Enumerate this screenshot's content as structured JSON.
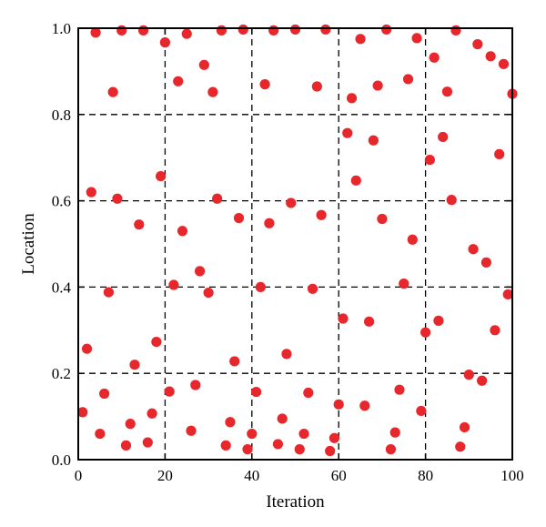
{
  "chart_data": {
    "type": "scatter",
    "xlabel": "Iteration",
    "ylabel": "Location",
    "xlim": [
      0,
      100
    ],
    "ylim": [
      0,
      1
    ],
    "x_ticks": [
      "0",
      "20",
      "40",
      "60",
      "80",
      "100"
    ],
    "y_ticks": [
      "0.0",
      "0.2",
      "0.4",
      "0.6",
      "0.8",
      "1.0"
    ],
    "grid": true,
    "grid_style": "dashed",
    "marker_color": "#e8272d",
    "series": [
      {
        "points": [
          [
            1,
            0.11
          ],
          [
            2,
            0.257
          ],
          [
            3,
            0.62
          ],
          [
            4,
            0.99
          ],
          [
            5,
            0.06
          ],
          [
            6,
            0.153
          ],
          [
            7,
            0.388
          ],
          [
            8,
            0.852
          ],
          [
            9,
            0.605
          ],
          [
            10,
            0.995
          ],
          [
            11,
            0.033
          ],
          [
            12,
            0.083
          ],
          [
            13,
            0.22
          ],
          [
            14,
            0.545
          ],
          [
            15,
            0.995
          ],
          [
            16,
            0.04
          ],
          [
            17,
            0.107
          ],
          [
            18,
            0.273
          ],
          [
            19,
            0.657
          ],
          [
            20,
            0.967
          ],
          [
            21,
            0.158
          ],
          [
            22,
            0.405
          ],
          [
            23,
            0.877
          ],
          [
            24,
            0.53
          ],
          [
            25,
            0.987
          ],
          [
            26,
            0.067
          ],
          [
            27,
            0.173
          ],
          [
            28,
            0.437
          ],
          [
            29,
            0.915
          ],
          [
            30,
            0.387
          ],
          [
            31,
            0.852
          ],
          [
            32,
            0.605
          ],
          [
            33,
            0.995
          ],
          [
            34,
            0.033
          ],
          [
            35,
            0.087
          ],
          [
            36,
            0.228
          ],
          [
            37,
            0.56
          ],
          [
            38,
            0.997
          ],
          [
            39,
            0.024
          ],
          [
            40,
            0.06
          ],
          [
            41,
            0.157
          ],
          [
            42,
            0.4
          ],
          [
            43,
            0.87
          ],
          [
            44,
            0.548
          ],
          [
            45,
            0.995
          ],
          [
            46,
            0.036
          ],
          [
            47,
            0.095
          ],
          [
            48,
            0.245
          ],
          [
            49,
            0.595
          ],
          [
            50,
            0.997
          ],
          [
            51,
            0.024
          ],
          [
            52,
            0.06
          ],
          [
            53,
            0.155
          ],
          [
            54,
            0.396
          ],
          [
            55,
            0.865
          ],
          [
            56,
            0.567
          ],
          [
            57,
            0.997
          ],
          [
            58,
            0.02
          ],
          [
            59,
            0.05
          ],
          [
            60,
            0.128
          ],
          [
            61,
            0.327
          ],
          [
            62,
            0.757
          ],
          [
            63,
            0.838
          ],
          [
            64,
            0.647
          ],
          [
            65,
            0.975
          ],
          [
            66,
            0.125
          ],
          [
            67,
            0.32
          ],
          [
            68,
            0.74
          ],
          [
            69,
            0.867
          ],
          [
            70,
            0.558
          ],
          [
            71,
            0.997
          ],
          [
            72,
            0.024
          ],
          [
            73,
            0.063
          ],
          [
            74,
            0.162
          ],
          [
            75,
            0.408
          ],
          [
            76,
            0.882
          ],
          [
            77,
            0.51
          ],
          [
            78,
            0.977
          ],
          [
            79,
            0.113
          ],
          [
            80,
            0.295
          ],
          [
            81,
            0.695
          ],
          [
            82,
            0.932
          ],
          [
            83,
            0.322
          ],
          [
            84,
            0.748
          ],
          [
            85,
            0.853
          ],
          [
            86,
            0.602
          ],
          [
            87,
            0.995
          ],
          [
            88,
            0.03
          ],
          [
            89,
            0.075
          ],
          [
            90,
            0.197
          ],
          [
            91,
            0.488
          ],
          [
            92,
            0.963
          ],
          [
            93,
            0.183
          ],
          [
            94,
            0.457
          ],
          [
            95,
            0.935
          ],
          [
            96,
            0.3
          ],
          [
            97,
            0.708
          ],
          [
            98,
            0.917
          ],
          [
            99,
            0.383
          ],
          [
            100,
            0.848
          ]
        ]
      }
    ]
  }
}
